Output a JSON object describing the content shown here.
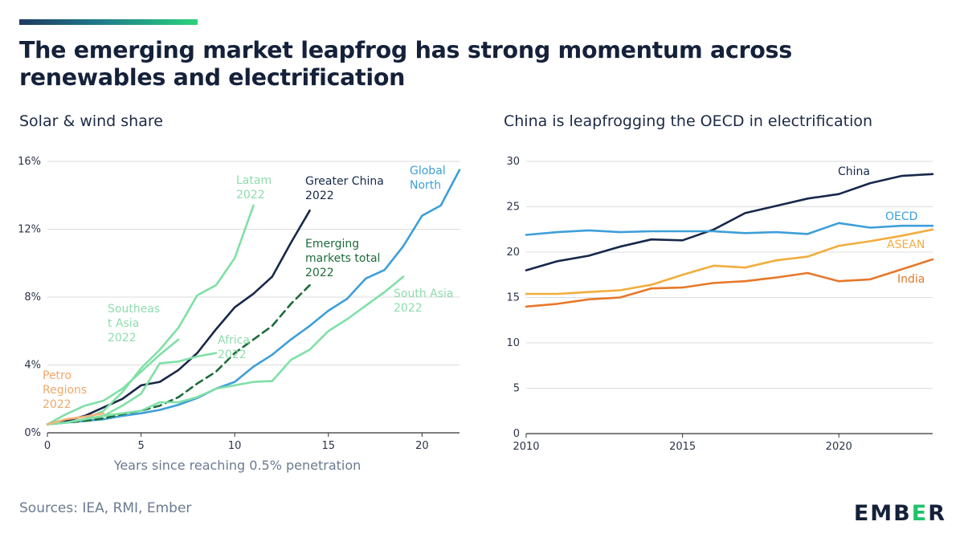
{
  "title": "The emerging market leapfrog has strong momentum across renewables and electrification",
  "source": "Sources: IEA, RMI, Ember",
  "logo": {
    "text_pre": "EMB",
    "text_accent": "E",
    "text_post": "R",
    "accent_color": "#1fc26b"
  },
  "chart_data": [
    {
      "type": "line",
      "title": "Solar & wind share",
      "xlabel": "Years since reaching 0.5% penetration",
      "ylabel": "",
      "xlim": [
        0,
        22
      ],
      "ylim": [
        0,
        16
      ],
      "x_ticks": [
        0,
        5,
        10,
        15,
        20
      ],
      "y_ticks": [
        0,
        4,
        8,
        12,
        16
      ],
      "y_tick_labels": [
        "0%",
        "4%",
        "8%",
        "12%",
        "16%"
      ],
      "grid": "horizontal",
      "series": [
        {
          "name": "Global North",
          "label_lines": [
            "Global",
            "North"
          ],
          "color": "#3d9fd9",
          "dash": false,
          "x": [
            0,
            1,
            2,
            3,
            4,
            5,
            6,
            7,
            8,
            9,
            10,
            11,
            12,
            13,
            14,
            15,
            16,
            17,
            18,
            19,
            20,
            21,
            22
          ],
          "y": [
            0.5,
            0.6,
            0.7,
            0.8,
            1.0,
            1.15,
            1.35,
            1.65,
            2.05,
            2.6,
            3.0,
            3.9,
            4.6,
            5.5,
            6.3,
            7.2,
            7.9,
            9.1,
            9.6,
            11.0,
            12.8,
            13.4,
            15.5
          ]
        },
        {
          "name": "Greater China 2022",
          "label_lines": [
            "Greater China",
            "2022"
          ],
          "color": "#17284a",
          "dash": false,
          "x": [
            0,
            1,
            2,
            3,
            4,
            5,
            6,
            7,
            8,
            9,
            10,
            11,
            12,
            13,
            14
          ],
          "y": [
            0.5,
            0.7,
            1.0,
            1.5,
            2.0,
            2.8,
            3.0,
            3.7,
            4.7,
            6.1,
            7.4,
            8.2,
            9.2,
            11.2,
            13.1
          ]
        },
        {
          "name": "Emerging markets total 2022",
          "label_lines": [
            "Emerging",
            "markets total",
            "2022"
          ],
          "color": "#1d6b3a",
          "dash": true,
          "x": [
            0,
            1,
            2,
            3,
            4,
            5,
            6,
            7,
            8,
            9,
            10,
            11,
            12,
            13,
            14
          ],
          "y": [
            0.5,
            0.6,
            0.7,
            0.85,
            1.1,
            1.3,
            1.6,
            2.1,
            2.9,
            3.6,
            4.7,
            5.5,
            6.3,
            7.6,
            8.7
          ]
        },
        {
          "name": "Latam 2022",
          "label_lines": [
            "Latam",
            "2022"
          ],
          "color": "#7fe0a6",
          "dash": false,
          "x": [
            0,
            1,
            2,
            3,
            4,
            5,
            6,
            7,
            8,
            9,
            10,
            11
          ],
          "y": [
            0.5,
            0.6,
            0.8,
            1.3,
            2.4,
            3.8,
            4.9,
            6.2,
            8.1,
            8.7,
            10.3,
            13.4
          ]
        },
        {
          "name": "Southeast Asia 2022",
          "label_lines": [
            "Southeas",
            "t Asia",
            "2022"
          ],
          "color": "#7fe0a6",
          "dash": false,
          "x": [
            0,
            1,
            2,
            3,
            4,
            5,
            6,
            7
          ],
          "y": [
            0.5,
            1.1,
            1.6,
            1.9,
            2.6,
            3.6,
            4.6,
            5.5
          ]
        },
        {
          "name": "Africa 2022",
          "label_lines": [
            "Africa",
            "2022"
          ],
          "color": "#7fe0a6",
          "dash": false,
          "x": [
            0,
            1,
            2,
            3,
            4,
            5,
            6,
            7,
            8,
            9
          ],
          "y": [
            0.5,
            0.6,
            0.8,
            1.0,
            1.6,
            2.3,
            4.1,
            4.2,
            4.5,
            4.7
          ]
        },
        {
          "name": "South Asia 2022",
          "label_lines": [
            "South Asia",
            "2022"
          ],
          "color": "#7fe0a6",
          "dash": false,
          "x": [
            0,
            1,
            2,
            3,
            4,
            5,
            6,
            7,
            8,
            9,
            10,
            11,
            12,
            13,
            14,
            15,
            16,
            17,
            18,
            19
          ],
          "y": [
            0.5,
            0.6,
            0.8,
            1.0,
            1.15,
            1.3,
            1.8,
            1.8,
            2.1,
            2.6,
            2.8,
            3.0,
            3.05,
            4.3,
            4.9,
            6.0,
            6.7,
            7.5,
            8.3,
            9.2
          ]
        },
        {
          "name": "Petro Regions 2022",
          "label_lines": [
            "Petro",
            "Regions",
            "2022"
          ],
          "color": "#f2b27a",
          "dash": false,
          "x": [
            0,
            1,
            2,
            3
          ],
          "y": [
            0.5,
            0.8,
            0.95,
            1.15
          ]
        }
      ]
    },
    {
      "type": "line",
      "title": "China is leapfrogging the OECD in electrification",
      "xlabel": "",
      "ylabel": "",
      "xlim": [
        2010,
        2023
      ],
      "ylim": [
        0,
        30
      ],
      "x_ticks": [
        2010,
        2015,
        2020
      ],
      "y_ticks": [
        0,
        5,
        10,
        15,
        20,
        25,
        30
      ],
      "grid": "horizontal",
      "series": [
        {
          "name": "China",
          "color": "#17284a",
          "x": [
            2010,
            2011,
            2012,
            2013,
            2014,
            2015,
            2016,
            2017,
            2018,
            2019,
            2020,
            2021,
            2022,
            2023
          ],
          "y": [
            18.0,
            19.0,
            19.6,
            20.6,
            21.4,
            21.3,
            22.5,
            24.3,
            25.1,
            25.9,
            26.4,
            27.6,
            28.4,
            28.6
          ]
        },
        {
          "name": "OECD",
          "color": "#3d9fd9",
          "x": [
            2010,
            2011,
            2012,
            2013,
            2014,
            2015,
            2016,
            2017,
            2018,
            2019,
            2020,
            2021,
            2022,
            2023
          ],
          "y": [
            21.9,
            22.2,
            22.4,
            22.2,
            22.3,
            22.3,
            22.3,
            22.1,
            22.2,
            22.0,
            23.2,
            22.7,
            22.9,
            22.9
          ]
        },
        {
          "name": "ASEAN",
          "color": "#f2ad3d",
          "x": [
            2010,
            2011,
            2012,
            2013,
            2014,
            2015,
            2016,
            2017,
            2018,
            2019,
            2020,
            2021,
            2022,
            2023
          ],
          "y": [
            15.4,
            15.4,
            15.6,
            15.8,
            16.4,
            17.5,
            18.5,
            18.3,
            19.1,
            19.5,
            20.7,
            21.2,
            21.8,
            22.5
          ]
        },
        {
          "name": "India",
          "color": "#e6782a",
          "x": [
            2010,
            2011,
            2012,
            2013,
            2014,
            2015,
            2016,
            2017,
            2018,
            2019,
            2020,
            2021,
            2022,
            2023
          ],
          "y": [
            14.0,
            14.3,
            14.8,
            15.0,
            16.0,
            16.1,
            16.6,
            16.8,
            17.2,
            17.7,
            16.8,
            17.0,
            18.1,
            19.2
          ]
        }
      ]
    }
  ]
}
